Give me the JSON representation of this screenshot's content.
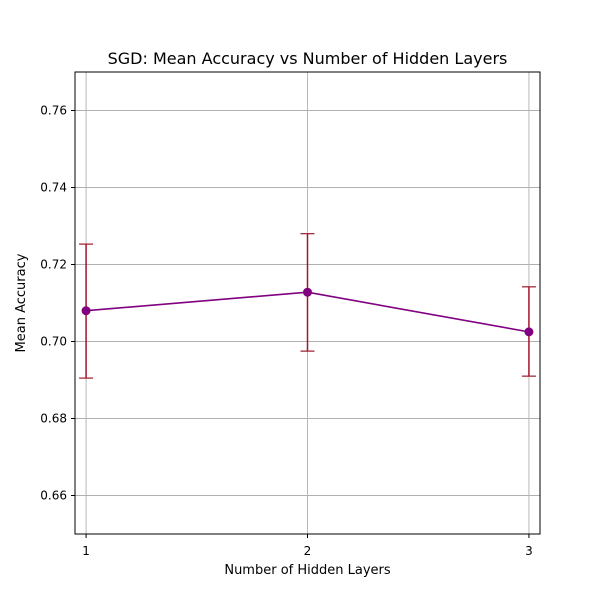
{
  "chart_data": {
    "type": "line",
    "title": "SGD: Mean Accuracy vs Number of Hidden Layers",
    "xlabel": "Number of Hidden Layers",
    "ylabel": "Mean Accuracy",
    "x": [
      1,
      2,
      3
    ],
    "x_tick_labels": [
      "1",
      "2",
      "3"
    ],
    "xlim": [
      0.95,
      3.05
    ],
    "ylim": [
      0.65,
      0.77
    ],
    "y_ticks": [
      0.66,
      0.68,
      0.7,
      0.72,
      0.74,
      0.76
    ],
    "y_tick_labels": [
      "0.66",
      "0.68",
      "0.70",
      "0.72",
      "0.74",
      "0.76"
    ],
    "series": [
      {
        "values": [
          0.708,
          0.7128,
          0.7025
        ],
        "error_lower": [
          0.6905,
          0.6975,
          0.691
        ],
        "error_upper": [
          0.7253,
          0.728,
          0.7142
        ],
        "color": "#800080",
        "error_color": "#a0172a",
        "marker": "circle"
      }
    ],
    "grid": true,
    "legend": "none"
  }
}
